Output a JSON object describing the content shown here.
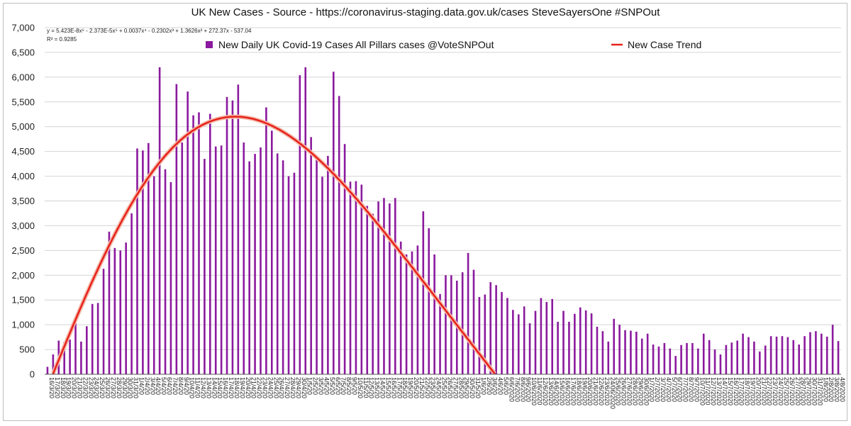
{
  "chart_data": {
    "type": "bar",
    "title": "UK New Cases - Source - https://coronavirus-staging.data.gov.uk/cases SteveSayersOne #SNPOut",
    "xlabel": "",
    "ylabel": "",
    "ylim": [
      0,
      7000
    ],
    "yticks": [
      0,
      500,
      1000,
      1500,
      2000,
      2500,
      3000,
      3500,
      4000,
      4500,
      5000,
      5500,
      6000,
      6500,
      7000
    ],
    "ytick_labels": [
      "0",
      "500",
      "1,000",
      "1,500",
      "2,000",
      "2,500",
      "3,000",
      "3,500",
      "4,000",
      "4,500",
      "5,000",
      "5,500",
      "6,000",
      "6,500",
      "7,000"
    ],
    "grid": "horizontal",
    "legend_position": "top",
    "trendline_equation": "y = 5.423E-8x⁶ - 2.373E-5x⁵ + 0.0037x⁴ - 0.2302x³ + 1.3626x² + 272.37x - 537.04",
    "trendline_r2": "R² = 0.9285",
    "trendline_coefficients": [
      5.423e-08,
      -2.373e-05,
      0.0037,
      -0.2302,
      1.3626,
      272.37,
      -537.04
    ],
    "categories": [
      "16/3/20",
      "17/3/20",
      "18/3/20",
      "19/3/20",
      "20/3/20",
      "21/3/20",
      "22/3/20",
      "23/3/20",
      "24/3/20",
      "25/3/20",
      "26/3/20",
      "27/3/20",
      "28/3/20",
      "29/3/20",
      "30/3/20",
      "31/3/20",
      "1/4/20",
      "2/4/20",
      "3/4/20",
      "4/4/20",
      "5/4/20",
      "6/4/20",
      "7/4/20",
      "8/4/20",
      "9/4/20",
      "10/4/20",
      "11/4/20",
      "12/4/20",
      "13/4/20",
      "14/4/20",
      "15/4/20",
      "16/4/20",
      "17/4/20",
      "18/4/20",
      "19/4/20",
      "20/4/20",
      "21/4/20",
      "22/4/20",
      "23/4/20",
      "24/4/20",
      "25/4/20",
      "26/4/20",
      "27/4/20",
      "28/4/20",
      "29/4/20",
      "30/4/20",
      "1/5/20",
      "2/5/20",
      "3/5/20",
      "4/5/20",
      "5/5/20",
      "6/5/20",
      "7/5/20",
      "8/5/20",
      "9/5/20",
      "10/5/20",
      "11/5/20",
      "12/5/20",
      "13/5/20",
      "14/5/20",
      "15/5/20",
      "16/5/20",
      "17/5/20",
      "18/5/20",
      "19/5/20",
      "20/5/20",
      "21/5/20",
      "22/5/20",
      "23/5/20",
      "24/5/20",
      "25/5/20",
      "26/5/20",
      "27/5/20",
      "28/5/20",
      "29/5/20",
      "30/5/20",
      "31/5/20",
      "1/6/20",
      "2/6/20",
      "3/6/20",
      "4/6/20",
      "5/6/20",
      "6/6/2020",
      "7/6/2020",
      "8/6/2020",
      "9/6/2020",
      "10/6/2020",
      "11/6/2020",
      "12/6/2020",
      "13/6/2020",
      "14/6/2020",
      "15/6/2020",
      "16/6/2020",
      "17/6/2020",
      "18/6/2020",
      "19/6/2020",
      "20/6/2020",
      "21/6/2020",
      "22/6/2020",
      "23/6/2020",
      "24/06/2020",
      "25/6/2020",
      "26/6/2020",
      "27/6/2020",
      "28/6/2020",
      "29/6/2020",
      "30/6/2020",
      "1/7/2020",
      "2/7/2020",
      "3/7/2020",
      "4/7/2020",
      "5/7/2020",
      "6/7/2020",
      "7/7/2020",
      "8/7/2020",
      "9/7/2020",
      "10/7/2020",
      "11/7/2020",
      "12/7/2020",
      "13/7/2020",
      "14/7/2020",
      "15/7/2020",
      "16/7/2020",
      "17/7/2020",
      "18/7/2020",
      "19/7/2020",
      "20/7/2020",
      "21/7/2020",
      "22/7/2020",
      "23/7/2020",
      "24/7/2020",
      "25/7/2020",
      "26/7/2020",
      "27/7/2020",
      "28/7/2020",
      "29/7/2020",
      "30/7/2020",
      "31/7/2020",
      "1/8/2020",
      "2/8/2020",
      "3/8/2020",
      "4/8/2020"
    ],
    "series": [
      {
        "name": "New Daily UK Covid-19 Cases All Pillars cases @VoteSNPOut",
        "type": "bar",
        "color": "#8b1a9e",
        "values": [
          150,
          400,
          680,
          650,
          700,
          1040,
          660,
          970,
          1420,
          1440,
          2130,
          2880,
          2550,
          2500,
          2660,
          3250,
          4560,
          4520,
          4670,
          4000,
          6200,
          4140,
          3880,
          5860,
          4680,
          5710,
          5230,
          5290,
          4350,
          5260,
          4600,
          4620,
          5600,
          5530,
          5850,
          4680,
          4300,
          4450,
          4580,
          5390,
          4920,
          4460,
          4320,
          4000,
          4070,
          6040,
          6200,
          4790,
          4350,
          3990,
          4410,
          6110,
          5620,
          4650,
          3890,
          3900,
          3830,
          3400,
          3240,
          3490,
          3560,
          3450,
          3560,
          2680,
          2420,
          2480,
          2600,
          3290,
          2950,
          2420,
          1620,
          2000,
          2000,
          1890,
          2060,
          2450,
          2110,
          1560,
          1610,
          1860,
          1800,
          1660,
          1540,
          1300,
          1210,
          1370,
          1030,
          1280,
          1540,
          1460,
          1520,
          1060,
          1280,
          1060,
          1220,
          1350,
          1290,
          1230,
          960,
          870,
          660,
          1120,
          1000,
          890,
          880,
          860,
          720,
          820,
          600,
          560,
          630,
          520,
          370,
          590,
          630,
          630,
          520,
          820,
          690,
          500,
          400,
          590,
          640,
          680,
          820,
          750,
          660,
          460,
          580,
          770,
          760,
          770,
          750,
          690,
          600,
          770,
          850,
          870,
          820,
          760,
          1000,
          670
        ]
      },
      {
        "name": "New Case Trend",
        "type": "line",
        "color": "#e8221b"
      }
    ]
  }
}
